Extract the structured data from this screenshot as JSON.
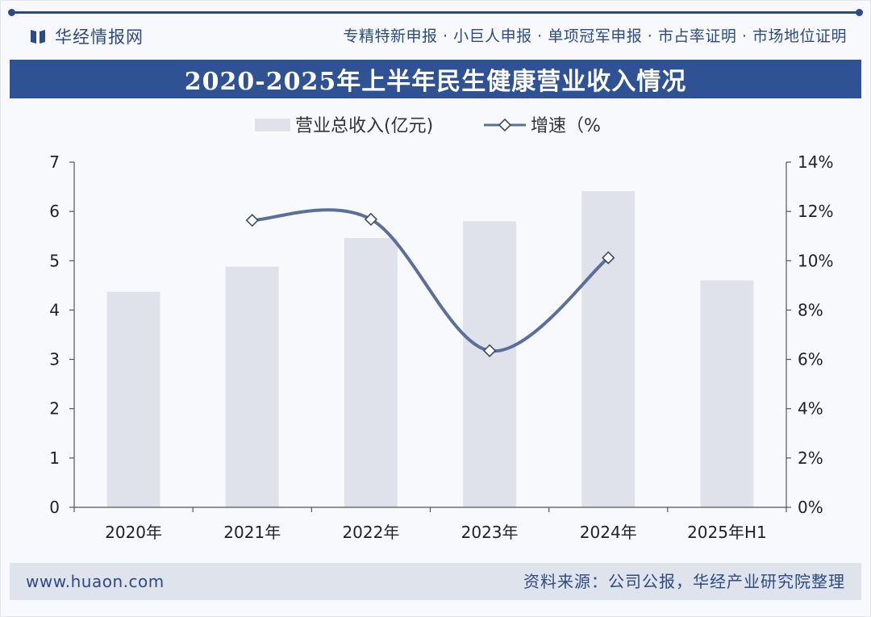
{
  "header": {
    "brand_name": "华经情报网",
    "brand_logo_icon": "book-icon",
    "services": "专精特新申报 · 小巨人申报 · 单项冠军申报 · 市占率证明 · 市场地位证明",
    "chart_title": "2020-2025年上半年民生健康营业收入情况"
  },
  "footer": {
    "website": "www.huaon.com",
    "source": "资料来源：公司公报，华经产业研究院整理"
  },
  "colors": {
    "brand": "#2c4a86",
    "title_band": "#2f5294",
    "bar": "#dfe2ea",
    "line": "#5a6f99"
  },
  "chart_data": {
    "type": "bar",
    "title": "2020-2025年上半年民生健康营业收入情况",
    "categories": [
      "2020年",
      "2021年",
      "2022年",
      "2023年",
      "2024年",
      "2025年H1"
    ],
    "series": [
      {
        "name": "营业总收入(亿元)",
        "type": "bar",
        "axis": "left",
        "values": [
          4.37,
          4.88,
          5.46,
          5.8,
          6.41,
          4.6
        ]
      },
      {
        "name": "增速（%",
        "type": "line",
        "axis": "right",
        "smooth": true,
        "marker": "diamond-outline",
        "values": [
          null,
          11.64,
          11.68,
          6.35,
          10.12,
          null
        ]
      }
    ],
    "y_left": {
      "ylim": [
        0,
        7
      ],
      "ticks": [
        "0",
        "1",
        "2",
        "3",
        "4",
        "5",
        "6",
        "7"
      ]
    },
    "y_right": {
      "ylim": [
        0,
        14
      ],
      "ticks": [
        "0%",
        "2%",
        "4%",
        "6%",
        "8%",
        "10%",
        "12%",
        "14%"
      ]
    },
    "legend_position": "top-center",
    "grid": false
  }
}
